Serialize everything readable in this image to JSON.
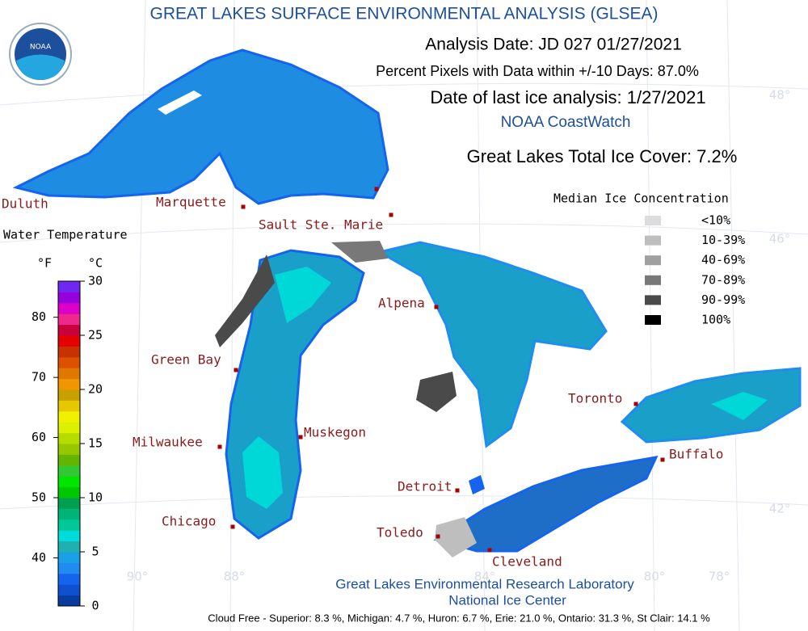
{
  "header": {
    "title": "GREAT LAKES SURFACE ENVIRONMENTAL ANALYSIS (GLSEA)",
    "analysis_date": "Analysis Date:  JD 027 01/27/2021",
    "percent_pixels": "Percent Pixels with Data within +/-10 Days:  87.0%",
    "last_ice_analysis": "Date of last ice analysis: 1/27/2021",
    "coastwatch": "NOAA CoastWatch",
    "total_ice_cover": "Great Lakes Total Ice Cover:   7.2%"
  },
  "logo": "NOAA",
  "ice_legend": {
    "title": "Median Ice Concentration",
    "items": [
      {
        "label": "<10%",
        "color": "#dcdcdc"
      },
      {
        "label": "10-39%",
        "color": "#bebebe"
      },
      {
        "label": "40-69%",
        "color": "#a0a0a0"
      },
      {
        "label": "70-89%",
        "color": "#787878"
      },
      {
        "label": "90-99%",
        "color": "#4a4a4a"
      },
      {
        "label": "100%",
        "color": "#000000"
      }
    ]
  },
  "temperature_legend": {
    "title": "Water Temperature",
    "f_unit": "°F",
    "c_unit": "°C",
    "f_ticks": [
      40,
      50,
      60,
      70,
      80
    ],
    "c_ticks": [
      0,
      5,
      10,
      15,
      20,
      25,
      30
    ],
    "c_range": [
      0,
      30
    ],
    "colors": [
      "#0a3ca0",
      "#0f50d0",
      "#1464f0",
      "#1e8cf0",
      "#1aa0e6",
      "#20b0b0",
      "#00dcdc",
      "#00c896",
      "#00b478",
      "#00a050",
      "#00c800",
      "#00e600",
      "#32c832",
      "#64b400",
      "#96c800",
      "#b4dc00",
      "#dcf000",
      "#f0f000",
      "#e6c800",
      "#c8a000",
      "#f09600",
      "#e07800",
      "#dc5000",
      "#c83200",
      "#e60000",
      "#c8003c",
      "#f0288c",
      "#dc00c8",
      "#9600dc",
      "#6e28f0"
    ]
  },
  "cities": [
    "Duluth",
    "Marquette",
    "Sault Ste. Marie",
    "Green Bay",
    "Alpena",
    "Milwaukee",
    "Muskegon",
    "Chicago",
    "Detroit",
    "Toledo",
    "Cleveland",
    "Toronto",
    "Buffalo"
  ],
  "graticule": {
    "lat": [
      "48°",
      "46°",
      "42°"
    ],
    "lon": [
      "90°",
      "88°",
      "84°",
      "80°",
      "78°"
    ]
  },
  "footer": {
    "lab": "Great Lakes Environmental Research Laboratory",
    "center": "National Ice Center",
    "cloud_free": "Cloud Free - Superior:   8.3 %, Michigan:   4.7 %, Huron:   6.7 %, Erie: 21.0 %, Ontario: 31.3 %, St Clair: 14.1 %"
  }
}
